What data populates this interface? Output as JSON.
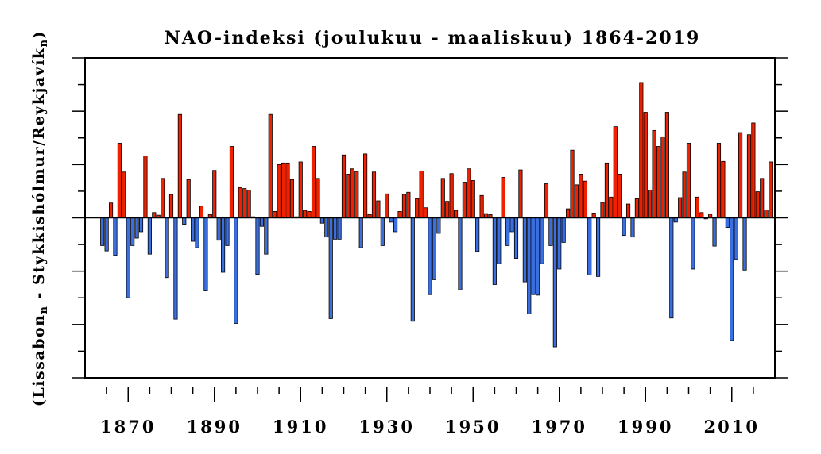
{
  "chart_data": {
    "type": "bar",
    "title": "NAO-indeksi (joulukuu - maaliskuu) 1864-2019",
    "ylabel_main": "(Lissabon",
    "ylabel_sub1": "n",
    "ylabel_mid": " - Stykkishólmur/Reykjavík",
    "ylabel_sub2": "n",
    "ylabel_end": ")",
    "xlim": [
      1860,
      2020
    ],
    "ylim": [
      -3,
      3
    ],
    "grid": false,
    "x_tick_labels": [
      "1870",
      "1890",
      "1910",
      "1930",
      "1950",
      "1970",
      "1990",
      "2010"
    ],
    "x_tick_values": [
      1870,
      1890,
      1910,
      1930,
      1950,
      1970,
      1990,
      2010
    ],
    "positive_color": "#ee2200",
    "negative_color": "#3b6fe0",
    "x_start": 1864,
    "values": [
      -0.52,
      -0.62,
      0.28,
      -0.7,
      1.4,
      0.86,
      -1.5,
      -0.52,
      -0.38,
      -0.26,
      1.16,
      -0.68,
      0.1,
      0.05,
      0.74,
      -1.12,
      0.44,
      -1.9,
      1.94,
      -0.12,
      0.72,
      -0.44,
      -0.56,
      0.22,
      -1.37,
      0.06,
      0.89,
      -0.42,
      -1.02,
      -0.52,
      1.34,
      -1.98,
      0.57,
      0.55,
      0.52,
      0.02,
      -1.06,
      -0.16,
      -0.68,
      1.94,
      0.12,
      1.0,
      1.03,
      1.03,
      0.72,
      0.02,
      1.05,
      0.14,
      0.12,
      1.34,
      0.74,
      -0.1,
      -0.36,
      -1.89,
      -0.4,
      -0.4,
      1.18,
      0.82,
      0.92,
      0.87,
      -0.56,
      1.2,
      0.06,
      0.86,
      0.32,
      -0.52,
      0.45,
      -0.08,
      -0.26,
      0.12,
      0.44,
      0.48,
      -1.94,
      0.36,
      0.88,
      0.19,
      -1.44,
      -1.16,
      -0.29,
      0.74,
      0.31,
      0.83,
      0.14,
      -1.35,
      0.67,
      0.92,
      0.7,
      -0.63,
      0.42,
      0.08,
      0.06,
      -1.25,
      -0.86,
      0.76,
      -0.52,
      -0.26,
      -0.76,
      0.9,
      -1.2,
      -1.8,
      -1.44,
      -1.45,
      -0.86,
      0.64,
      -0.52,
      -2.42,
      -0.96,
      -0.46,
      0.17,
      1.27,
      0.62,
      0.82,
      0.69,
      -1.07,
      0.09,
      -1.1,
      0.29,
      1.03,
      0.39,
      1.71,
      0.82,
      -0.33,
      0.26,
      -0.36,
      0.36,
      2.54,
      1.98,
      0.52,
      1.64,
      1.34,
      1.52,
      1.98,
      -1.88,
      -0.08,
      0.38,
      0.86,
      1.4,
      -0.96,
      0.39,
      0.1,
      -0.02,
      0.07,
      -0.53,
      1.4,
      1.06,
      -0.18,
      -2.3,
      -0.78,
      1.6,
      -0.98,
      1.56,
      1.78,
      0.49,
      0.74,
      0.15,
      1.05
    ]
  }
}
